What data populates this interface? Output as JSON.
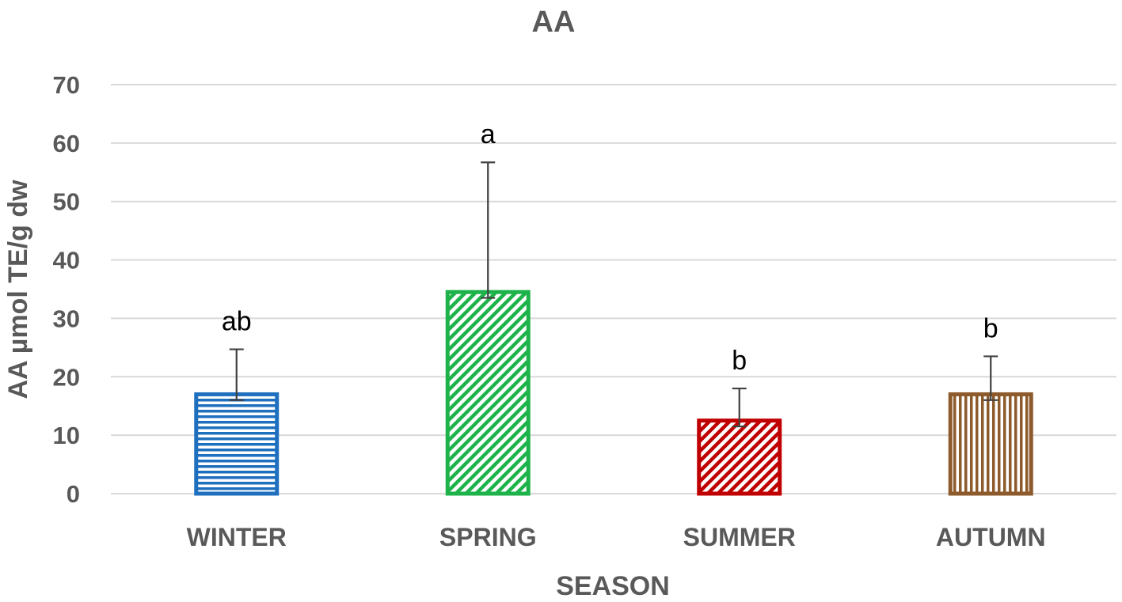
{
  "chart_data": {
    "type": "bar",
    "title": "AA",
    "xlabel": "SEASON",
    "ylabel": "AA µmol TE/g dw",
    "categories": [
      "WINTER",
      "SPRING",
      "SUMMER",
      "AUTUMN"
    ],
    "values": [
      17,
      34.5,
      12.5,
      17
    ],
    "error_upper": [
      24.7,
      56.7,
      18,
      23.5
    ],
    "error_lower": [
      16,
      33.5,
      11.5,
      16
    ],
    "significance_labels": [
      "ab",
      "a",
      "b",
      "b"
    ],
    "ylim": [
      0,
      70
    ],
    "yticks": [
      0,
      10,
      20,
      30,
      40,
      50,
      60,
      70
    ],
    "grid": true,
    "legend": "none",
    "colors": [
      "#1f6fbf",
      "#1db34a",
      "#c00000",
      "#8c5a2b"
    ],
    "patterns": [
      "horizontal-stripes",
      "diagonal-stripes",
      "diagonal-stripes",
      "vertical-stripes"
    ]
  }
}
